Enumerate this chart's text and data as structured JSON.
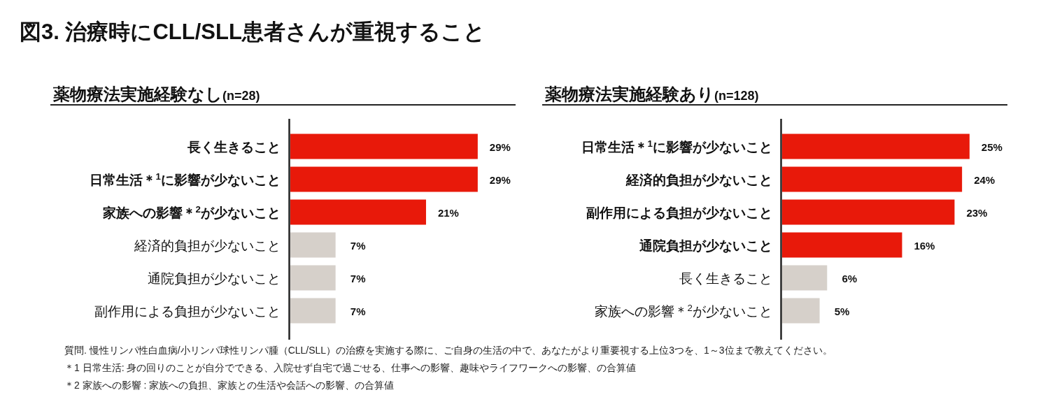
{
  "chart_data": [
    {
      "type": "bar",
      "orientation": "horizontal",
      "title": "図3. 治療時にCLL/SLL患者さんが重視すること",
      "subtitle": "薬物療法実施経験なし(n=28)",
      "categories": [
        "長く生きること",
        "日常生活＊$^{1}$に影響が少ないこと",
        "家族への影響＊$^{2}$が少ないこと",
        "経済的負担が少ないこと",
        "通院負担が少ないこと",
        "副作用による負担が少ないこと"
      ],
      "values": [
        29,
        29,
        21,
        7,
        7,
        7
      ],
      "colors": [
        "#e8190a",
        "#e8190a",
        "#e8190a",
        "#d6d0ca",
        "#d6d0ca",
        "#d6d0ca"
      ],
      "value_labels": [
        "29%",
        "29%",
        "21%",
        "7%",
        "7%",
        "7%"
      ],
      "annotations": [
        "質問.  慢性リンパ性白血病/小リンパ球性リンパ腫（CLL/SLL）の治療を実施する際に、ご自身の生活の中で、あなたがより重要視する上位3つを、1～3位まで教えてください。",
        "＊1 日常生活: 身の回りのことが自分でできる、入院せず自宅で過ごせる、仕事への影響、趣味やライフワークへの影響、の合算値",
        "＊2 家族への影響 : 家族への負担、家族との生活や会話への影響、の合算値"
      ]
    },
    {
      "type": "bar",
      "orientation": "horizontal",
      "subtitle": "薬物療法実施経験あり(n=128)",
      "categories": [
        "日常生活＊$^{1}$に影響が少ないこと",
        "経済的負担が少ないこと",
        "副作用による負担が少ないこと",
        "通院負担が少ないこと",
        "長く生きること",
        "家族への影響＊$^{2}$が少ないこと"
      ],
      "values": [
        25,
        24,
        23,
        16,
        6,
        5
      ],
      "colors": [
        "#e8190a",
        "#e8190a",
        "#e8190a",
        "#e8190a",
        "#d6d0ca",
        "#d6d0ca"
      ],
      "value_labels": [
        "25%",
        "24%",
        "23%",
        "16%",
        "6%",
        "5%"
      ]
    }
  ]
}
